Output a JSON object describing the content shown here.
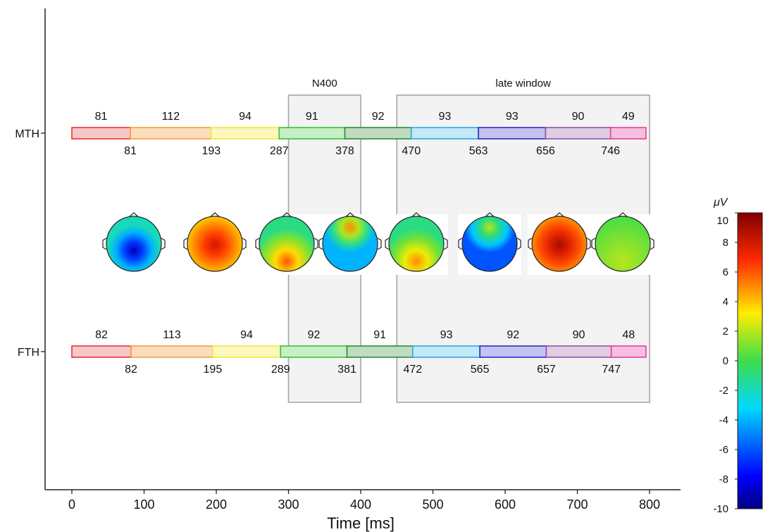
{
  "chart_data": {
    "type": "bar",
    "title": "",
    "xlabel": "Time [ms]",
    "ylabel": "",
    "xlim": [
      0,
      800
    ],
    "xticks": [
      0,
      100,
      200,
      300,
      400,
      500,
      600,
      700,
      800
    ],
    "rows": [
      "MTH",
      "FTH"
    ],
    "windows": [
      {
        "label": "N400",
        "start": 300,
        "end": 400
      },
      {
        "label": "late window",
        "start": 450,
        "end": 800
      }
    ],
    "segment_colors": [
      "#e8332f",
      "#f4a13a",
      "#f1ea3c",
      "#35c637",
      "#2e8b3a",
      "#2fa8e6",
      "#2c2bbf",
      "#8a57a8",
      "#ea3e9b"
    ],
    "segment_fills": [
      "#f7c6c9",
      "#fbdcbc",
      "#fbf7bd",
      "#c6efc6",
      "#bfdcbf",
      "#c3e8f7",
      "#c4c3f0",
      "#e0cde2",
      "#f6bfe0"
    ],
    "series": [
      {
        "name": "MTH",
        "boundaries": [
          0,
          81,
          193,
          287,
          378,
          470,
          563,
          656,
          746,
          795
        ],
        "durations": [
          81,
          112,
          94,
          91,
          92,
          93,
          93,
          90,
          49
        ],
        "boundary_labels": [
          "81",
          "193",
          "287",
          "378",
          "470",
          "563",
          "656",
          "746"
        ],
        "duration_labels": [
          "81",
          "112",
          "94",
          "91",
          "92",
          "93",
          "93",
          "90",
          "49"
        ]
      },
      {
        "name": "FTH",
        "boundaries": [
          0,
          82,
          195,
          289,
          381,
          472,
          565,
          657,
          747,
          795
        ],
        "durations": [
          82,
          113,
          94,
          92,
          91,
          93,
          92,
          90,
          48
        ],
        "boundary_labels": [
          "82",
          "195",
          "289",
          "381",
          "472",
          "565",
          "657",
          "747"
        ],
        "duration_labels": [
          "82",
          "113",
          "94",
          "92",
          "91",
          "93",
          "92",
          "90",
          "48"
        ]
      }
    ],
    "topomaps": [
      {
        "index": 1,
        "peak": "-9",
        "base": "-2",
        "shape": "center-blue"
      },
      {
        "index": 2,
        "peak": "8",
        "base": "4",
        "shape": "center-red"
      },
      {
        "index": 3,
        "peak": "6",
        "base": "-1",
        "shape": "posterior-red"
      },
      {
        "index": 4,
        "peak": "5",
        "base": "-4",
        "shape": "frontal-blue"
      },
      {
        "index": 5,
        "peak": "5",
        "base": "-1",
        "shape": "posterior-red"
      },
      {
        "index": 6,
        "peak": "2",
        "base": "-6",
        "shape": "frontal-blue"
      },
      {
        "index": 7,
        "peak": "9",
        "base": "5",
        "shape": "center-red"
      },
      {
        "index": 8,
        "peak": "2",
        "base": "0",
        "shape": "flat"
      }
    ],
    "colorbar": {
      "label": "μV",
      "min": -10,
      "max": 10,
      "ticks": [
        "10",
        "8",
        "6",
        "4",
        "2",
        "0",
        "-2",
        "-4",
        "-6",
        "-8",
        "-10"
      ]
    }
  }
}
